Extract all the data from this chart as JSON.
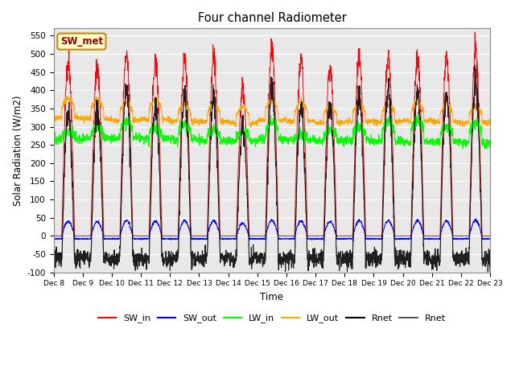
{
  "title": "Four channel Radiometer",
  "xlabel": "Time",
  "ylabel": "Solar Radiation (W/m2)",
  "ylim": [
    -100,
    570
  ],
  "yticks": [
    -100,
    -50,
    0,
    50,
    100,
    150,
    200,
    250,
    300,
    350,
    400,
    450,
    500,
    550
  ],
  "annotation_text": "SW_met",
  "annotation_bg": "#FFFFCC",
  "annotation_border": "#CC8800",
  "colors": {
    "SW_in": "#FF0000",
    "SW_out": "#0000FF",
    "LW_in": "#00FF00",
    "LW_out": "#FFA500",
    "Rnet_black": "#000000",
    "Rnet_dark": "#555555"
  },
  "legend_labels": [
    "SW_in",
    "SW_out",
    "LW_in",
    "LW_out",
    "Rnet",
    "Rnet"
  ],
  "num_days": 15,
  "start_day": 8,
  "bg_color": "#E8E8E8",
  "fig_bg": "#FFFFFF"
}
